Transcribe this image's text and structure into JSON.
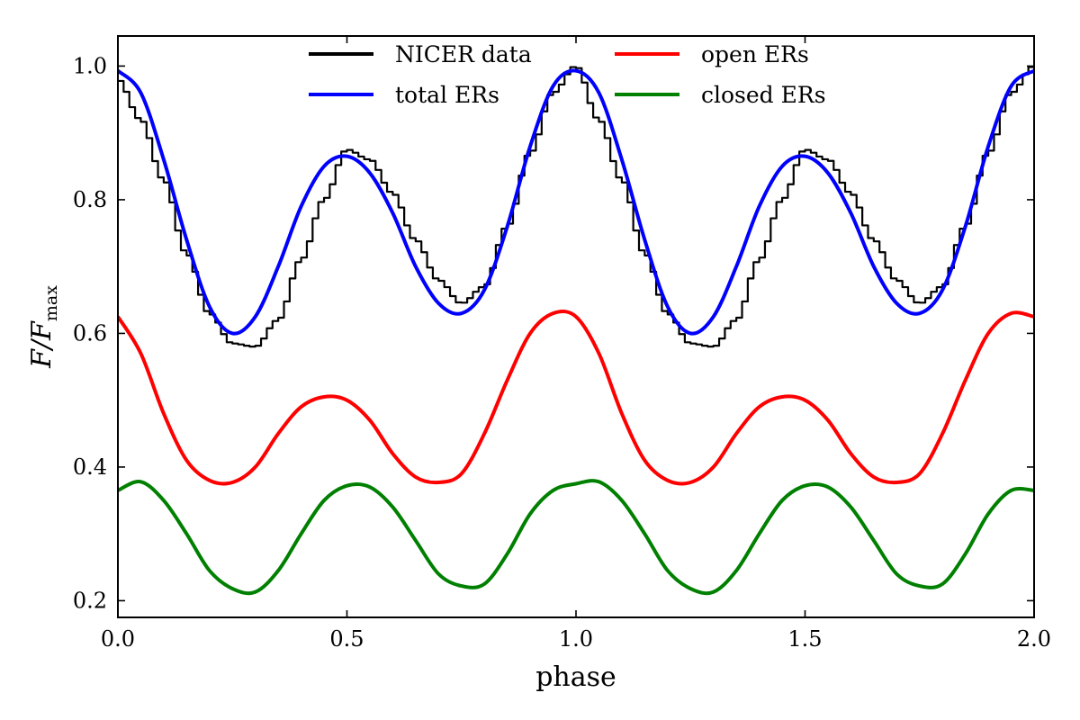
{
  "chart_data": {
    "type": "line",
    "title": "",
    "xlabel": "phase",
    "ylabel": {
      "main": "F/F",
      "sub": "max"
    },
    "xlim": [
      0.0,
      2.0
    ],
    "ylim": [
      0.175,
      1.045
    ],
    "xticks": [
      0.0,
      0.5,
      1.0,
      1.5,
      2.0
    ],
    "xtick_labels": [
      "0.0",
      "0.5",
      "1.0",
      "1.5",
      "2.0"
    ],
    "yticks": [
      0.2,
      0.4,
      0.6,
      0.8,
      1.0
    ],
    "ytick_labels": [
      "0.2",
      "0.4",
      "0.6",
      "0.8",
      "1.0"
    ],
    "grid": false,
    "legend_position": "top-center",
    "series": [
      {
        "name": "NICER data",
        "color": "#000000",
        "style": "step",
        "x": [
          0.0,
          0.05,
          0.1,
          0.15,
          0.2,
          0.25,
          0.3,
          0.35,
          0.4,
          0.45,
          0.5,
          0.55,
          0.6,
          0.65,
          0.7,
          0.75,
          0.8,
          0.85,
          0.9,
          0.95,
          1.0,
          1.05,
          1.1,
          1.15,
          1.2,
          1.25,
          1.3,
          1.35,
          1.4,
          1.45,
          1.5,
          1.55,
          1.6,
          1.65,
          1.7,
          1.75,
          1.8,
          1.85,
          1.9,
          1.95,
          2.0
        ],
        "y": [
          0.98,
          0.92,
          0.83,
          0.72,
          0.63,
          0.585,
          0.58,
          0.62,
          0.71,
          0.8,
          0.875,
          0.86,
          0.81,
          0.74,
          0.68,
          0.645,
          0.67,
          0.76,
          0.87,
          0.96,
          1.0,
          0.92,
          0.83,
          0.72,
          0.63,
          0.585,
          0.58,
          0.62,
          0.71,
          0.8,
          0.875,
          0.86,
          0.81,
          0.74,
          0.68,
          0.645,
          0.67,
          0.76,
          0.87,
          0.96,
          1.0
        ]
      },
      {
        "name": "total ERs",
        "color": "#0000ff",
        "style": "line",
        "x": [
          0.0,
          0.05,
          0.1,
          0.15,
          0.2,
          0.25,
          0.3,
          0.35,
          0.4,
          0.45,
          0.5,
          0.55,
          0.6,
          0.65,
          0.7,
          0.75,
          0.8,
          0.85,
          0.9,
          0.95,
          1.0,
          1.05,
          1.1,
          1.15,
          1.2,
          1.25,
          1.3,
          1.35,
          1.4,
          1.45,
          1.5,
          1.55,
          1.6,
          1.65,
          1.7,
          1.75,
          1.8,
          1.85,
          1.9,
          1.95,
          2.0
        ],
        "y": [
          0.993,
          0.96,
          0.86,
          0.74,
          0.64,
          0.6,
          0.625,
          0.7,
          0.79,
          0.85,
          0.865,
          0.84,
          0.78,
          0.7,
          0.645,
          0.63,
          0.665,
          0.76,
          0.88,
          0.97,
          0.993,
          0.96,
          0.86,
          0.74,
          0.64,
          0.6,
          0.625,
          0.7,
          0.79,
          0.85,
          0.865,
          0.84,
          0.78,
          0.7,
          0.645,
          0.63,
          0.665,
          0.76,
          0.88,
          0.97,
          0.993
        ]
      },
      {
        "name": "open ERs",
        "color": "#ff0000",
        "style": "line",
        "x": [
          0.0,
          0.05,
          0.1,
          0.15,
          0.2,
          0.25,
          0.3,
          0.35,
          0.4,
          0.45,
          0.5,
          0.55,
          0.6,
          0.65,
          0.7,
          0.75,
          0.8,
          0.85,
          0.9,
          0.95,
          1.0,
          1.05,
          1.1,
          1.15,
          1.2,
          1.25,
          1.3,
          1.35,
          1.4,
          1.45,
          1.5,
          1.55,
          1.6,
          1.65,
          1.7,
          1.75,
          1.8,
          1.85,
          1.9,
          1.95,
          2.0
        ],
        "y": [
          0.625,
          0.57,
          0.48,
          0.41,
          0.38,
          0.377,
          0.4,
          0.45,
          0.49,
          0.505,
          0.5,
          0.47,
          0.42,
          0.385,
          0.377,
          0.39,
          0.45,
          0.53,
          0.6,
          0.63,
          0.625,
          0.57,
          0.48,
          0.41,
          0.38,
          0.377,
          0.4,
          0.45,
          0.49,
          0.505,
          0.5,
          0.47,
          0.42,
          0.385,
          0.377,
          0.39,
          0.45,
          0.53,
          0.6,
          0.63,
          0.625
        ]
      },
      {
        "name": "closed ERs",
        "color": "#008000",
        "style": "line",
        "x": [
          0.0,
          0.05,
          0.1,
          0.15,
          0.2,
          0.25,
          0.3,
          0.35,
          0.4,
          0.45,
          0.5,
          0.55,
          0.6,
          0.65,
          0.7,
          0.75,
          0.8,
          0.85,
          0.9,
          0.95,
          1.0,
          1.05,
          1.1,
          1.15,
          1.2,
          1.25,
          1.3,
          1.35,
          1.4,
          1.45,
          1.5,
          1.55,
          1.6,
          1.65,
          1.7,
          1.75,
          1.8,
          1.85,
          1.9,
          1.95,
          2.0
        ],
        "y": [
          0.365,
          0.378,
          0.35,
          0.3,
          0.245,
          0.218,
          0.213,
          0.245,
          0.3,
          0.35,
          0.372,
          0.37,
          0.34,
          0.29,
          0.24,
          0.222,
          0.225,
          0.27,
          0.33,
          0.365,
          0.375,
          0.378,
          0.35,
          0.3,
          0.245,
          0.218,
          0.213,
          0.245,
          0.3,
          0.35,
          0.372,
          0.37,
          0.34,
          0.29,
          0.24,
          0.222,
          0.225,
          0.27,
          0.33,
          0.365,
          0.365
        ]
      }
    ]
  }
}
